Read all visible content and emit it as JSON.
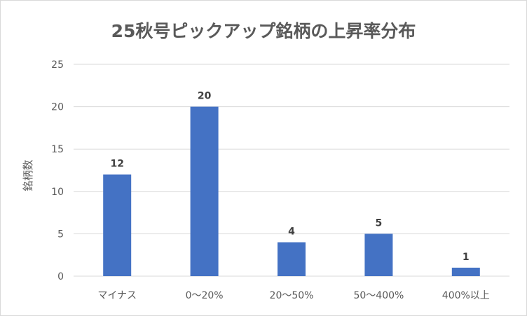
{
  "chart_data": {
    "type": "bar",
    "title": "25秋号ピックアップ銘柄の上昇率分布",
    "xlabel": "",
    "ylabel": "銘柄数",
    "categories": [
      "マイナス",
      "0〜20%",
      "20〜50%",
      "50〜400%",
      "400%以上"
    ],
    "values": [
      12,
      20,
      4,
      5,
      1
    ],
    "ylim": [
      0,
      25
    ],
    "yticks": [
      0,
      5,
      10,
      15,
      20,
      25
    ],
    "grid": true,
    "data_labels": true,
    "bar_color": "#4472c4"
  }
}
